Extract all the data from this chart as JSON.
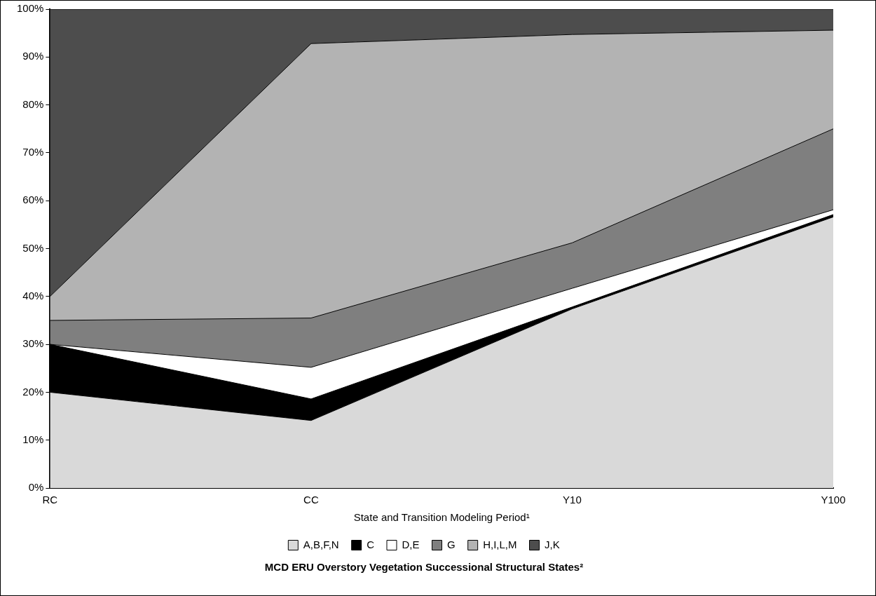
{
  "chart_data": {
    "type": "area",
    "stacked": true,
    "title": "MCD ERU Overstory Vegetation Successional Structural States²",
    "xlabel": "State and Transition Modeling Period¹",
    "categories": [
      "RC",
      "CC",
      "Y10",
      "Y100"
    ],
    "series": [
      {
        "name": "A,B,F,N",
        "color": "#d9d9d9",
        "values": [
          20,
          14.1,
          37.4,
          56.6
        ]
      },
      {
        "name": "C",
        "color": "#000000",
        "values": [
          10,
          4.5,
          0.4,
          0.5
        ]
      },
      {
        "name": "D,E",
        "color": "#ffffff",
        "values": [
          0,
          6.6,
          3.9,
          1.0
        ]
      },
      {
        "name": "G",
        "color": "#7f7f7f",
        "values": [
          5,
          10.3,
          9.5,
          16.9
        ]
      },
      {
        "name": "H,I,L,M",
        "color": "#b3b3b3",
        "values": [
          5,
          57.3,
          43.5,
          20.6
        ]
      },
      {
        "name": "J,K",
        "color": "#4d4d4d",
        "values": [
          60,
          7.2,
          5.3,
          4.4
        ]
      }
    ],
    "ylim": [
      0,
      100
    ],
    "yticks": [
      {
        "value": 0,
        "label": "0%"
      },
      {
        "value": 10,
        "label": "10%"
      },
      {
        "value": 20,
        "label": "20%"
      },
      {
        "value": 30,
        "label": "30%"
      },
      {
        "value": 40,
        "label": "40%"
      },
      {
        "value": 50,
        "label": "50%"
      },
      {
        "value": 60,
        "label": "60%"
      },
      {
        "value": 70,
        "label": "70%"
      },
      {
        "value": 80,
        "label": "80%"
      },
      {
        "value": 90,
        "label": "90%"
      },
      {
        "value": 100,
        "label": "100%"
      }
    ],
    "legend": "bottom"
  }
}
